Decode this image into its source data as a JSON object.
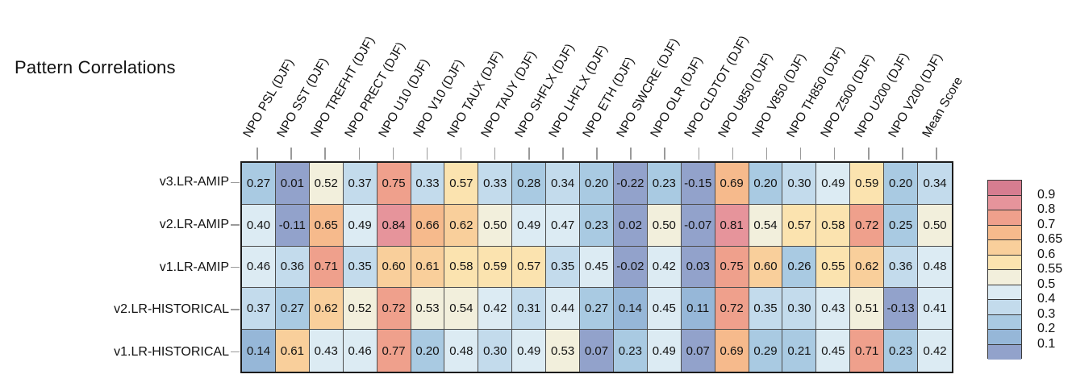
{
  "title": "Pattern Correlations",
  "chart_data": {
    "type": "heatmap",
    "title": "Pattern Correlations",
    "columns": [
      "NPO PSL (DJF)",
      "NPO SST (DJF)",
      "NPO TREFHT (DJF)",
      "NPO PRECT (DJF)",
      "NPO U10 (DJF)",
      "NPO V10 (DJF)",
      "NPO TAUX (DJF)",
      "NPO TAUY (DJF)",
      "NPO SHFLX (DJF)",
      "NPO LHFLX (DJF)",
      "NPO ETH (DJF)",
      "NPO SWCRE (DJF)",
      "NPO OLR (DJF)",
      "NPO CLDTOT (DJF)",
      "NPO U850 (DJF)",
      "NPO V850 (DJF)",
      "NPO TH850 (DJF)",
      "NPO Z500 (DJF)",
      "NPO U200 (DJF)",
      "NPO V200 (DJF)",
      "Mean Score"
    ],
    "rows": [
      "v3.LR-AMIP",
      "v2.LR-AMIP",
      "v1.LR-AMIP",
      "v2.LR-HISTORICAL",
      "v1.LR-HISTORICAL"
    ],
    "values": [
      [
        0.27,
        0.01,
        0.52,
        0.37,
        0.75,
        0.33,
        0.57,
        0.33,
        0.28,
        0.34,
        0.2,
        -0.22,
        0.23,
        -0.15,
        0.69,
        0.2,
        0.3,
        0.49,
        0.59,
        0.2,
        0.34
      ],
      [
        0.4,
        -0.11,
        0.65,
        0.49,
        0.84,
        0.66,
        0.62,
        0.5,
        0.49,
        0.47,
        0.23,
        0.02,
        0.5,
        -0.07,
        0.81,
        0.54,
        0.57,
        0.58,
        0.72,
        0.25,
        0.5
      ],
      [
        0.46,
        0.36,
        0.71,
        0.35,
        0.6,
        0.61,
        0.58,
        0.59,
        0.57,
        0.35,
        0.45,
        -0.02,
        0.42,
        0.03,
        0.75,
        0.6,
        0.26,
        0.55,
        0.62,
        0.36,
        0.48
      ],
      [
        0.37,
        0.27,
        0.62,
        0.52,
        0.72,
        0.53,
        0.54,
        0.42,
        0.31,
        0.44,
        0.27,
        0.14,
        0.45,
        0.11,
        0.72,
        0.35,
        0.3,
        0.43,
        0.51,
        -0.13,
        0.41
      ],
      [
        0.14,
        0.61,
        0.43,
        0.46,
        0.77,
        0.2,
        0.48,
        0.3,
        0.49,
        0.53,
        0.07,
        0.23,
        0.49,
        0.07,
        0.69,
        0.29,
        0.21,
        0.45,
        0.71,
        0.23,
        0.42
      ]
    ],
    "value_decimals": 2,
    "colormap": {
      "thresholds": [
        0.1,
        0.2,
        0.3,
        0.4,
        0.5,
        0.55,
        0.6,
        0.65,
        0.7,
        0.8,
        0.9
      ],
      "colors_low_to_high": [
        "#92a2cb",
        "#96b7d8",
        "#a9cae2",
        "#c3dbec",
        "#dcebf3",
        "#f2efdc",
        "#fbe3af",
        "#f9cf9b",
        "#f6ba8c",
        "#efa08c",
        "#e6949b",
        "#d67d90"
      ]
    },
    "legend": {
      "position": "right",
      "tick_labels": [
        "0.9",
        "0.8",
        "0.7",
        "0.65",
        "0.6",
        "0.55",
        "0.5",
        "0.4",
        "0.3",
        "0.2",
        "0.1"
      ]
    }
  }
}
